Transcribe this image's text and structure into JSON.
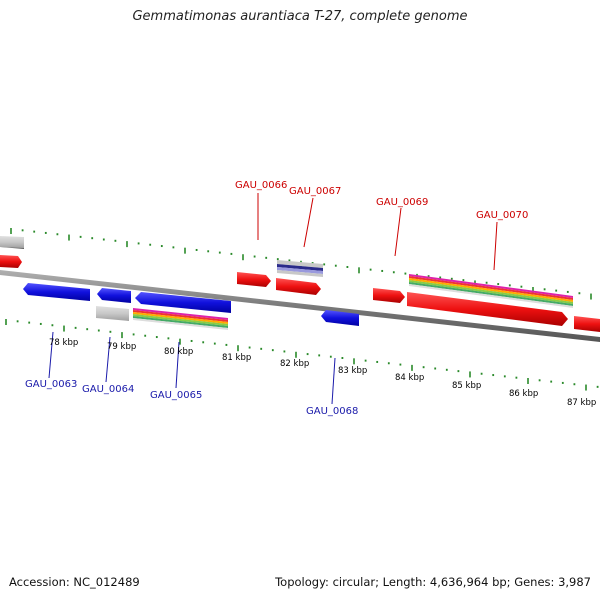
{
  "title": "Gemmatimonas aurantiaca T-27, complete genome",
  "footer": {
    "accession": "Accession: NC_012489",
    "summary": "Topology: circular; Length: 4,636,964 bp; Genes: 3,987"
  },
  "colors": {
    "forward_gene": "#ee1111",
    "reverse_gene": "#1111dd",
    "rna_gene": "#c8c8c8",
    "backbone": "#808080",
    "tick": "#2a8a2a",
    "top_label": "#cc0000",
    "bottom_label": "#1a1aaa"
  },
  "scale_labels": [
    "78 kbp",
    "79 kbp",
    "80 kbp",
    "81 kbp",
    "82 kbp",
    "83 kbp",
    "84 kbp",
    "85 kbp",
    "86 kbp",
    "87 kbp"
  ],
  "top_gene_labels": [
    "GAU_0066",
    "GAU_0067",
    "GAU_0069",
    "GAU_0070"
  ],
  "bottom_gene_labels": [
    "GAU_0063",
    "GAU_0064",
    "GAU_0065",
    "GAU_0068"
  ]
}
